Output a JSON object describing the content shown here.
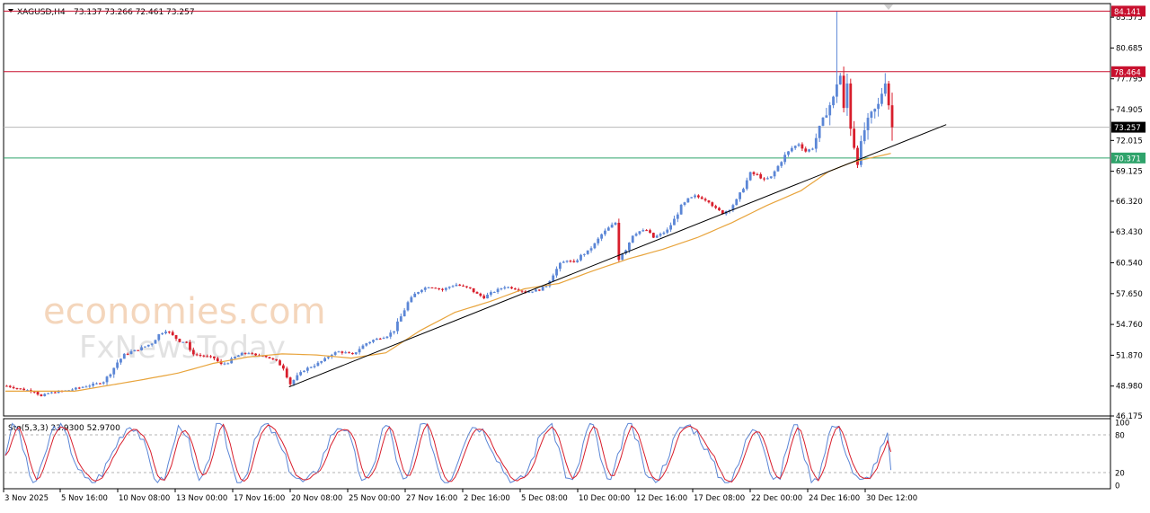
{
  "header": {
    "symbol": "XAGUSD,H4",
    "ohlc": "73.137 73.266 72.461 73.257"
  },
  "watermark": {
    "line1": "economies.com",
    "line2": "FxNewsToday"
  },
  "colors": {
    "bull": "#5b86d6",
    "bear": "#d81e2c",
    "ma": "#e8a43c",
    "trendline": "#000000",
    "resistance": "#c8102e",
    "support": "#2fa36b",
    "current": "#000000",
    "stoch_main": "#5b86d6",
    "stoch_signal": "#d81e2c"
  },
  "chart_data": [
    {
      "type": "candlestick",
      "title": "XAGUSD,H4",
      "ylim": [
        46.175,
        84.85
      ],
      "y_ticks": [
        "83.575",
        "80.685",
        "77.795",
        "74.905",
        "72.015",
        "69.125",
        "66.320",
        "63.430",
        "60.540",
        "57.650",
        "54.760",
        "51.870",
        "48.980",
        "46.175"
      ],
      "x_ticks": [
        "3 Nov 2025",
        "5 Nov 16:00",
        "10 Nov 08:00",
        "13 Nov 00:00",
        "17 Nov 16:00",
        "20 Nov 08:00",
        "25 Nov 00:00",
        "27 Nov 16:00",
        "2 Dec 16:00",
        "5 Dec 08:00",
        "10 Dec 00:00",
        "12 Dec 16:00",
        "17 Dec 08:00",
        "22 Dec 00:00",
        "24 Dec 16:00",
        "30 Dec 12:00"
      ],
      "levels": [
        {
          "label": "84.141",
          "value": 84.141,
          "kind": "resistance"
        },
        {
          "label": "78.464",
          "value": 78.464,
          "kind": "resistance"
        },
        {
          "label": "73.257",
          "value": 73.257,
          "kind": "current"
        },
        {
          "label": "70.371",
          "value": 70.371,
          "kind": "support"
        }
      ],
      "trendline": {
        "from": {
          "bar": 82,
          "price": 48.9
        },
        "to": {
          "bar": 272,
          "price": 73.5
        }
      },
      "close_path": [
        [
          0,
          49.0
        ],
        [
          4,
          48.7
        ],
        [
          8,
          48.5
        ],
        [
          10,
          48.0
        ],
        [
          12,
          48.3
        ],
        [
          14,
          48.4
        ],
        [
          18,
          48.6
        ],
        [
          22,
          48.9
        ],
        [
          26,
          49.2
        ],
        [
          28,
          49.4
        ],
        [
          30,
          50.2
        ],
        [
          32,
          51.2
        ],
        [
          34,
          51.9
        ],
        [
          36,
          52.2
        ],
        [
          38,
          52.4
        ],
        [
          40,
          52.7
        ],
        [
          42,
          53.0
        ],
        [
          44,
          53.8
        ],
        [
          46,
          54.2
        ],
        [
          47,
          54.0
        ],
        [
          48,
          53.7
        ],
        [
          50,
          53.2
        ],
        [
          52,
          53.1
        ],
        [
          53,
          52.2
        ],
        [
          55,
          51.9
        ],
        [
          57,
          51.8
        ],
        [
          60,
          51.6
        ],
        [
          62,
          51.0
        ],
        [
          64,
          51.2
        ],
        [
          66,
          51.7
        ],
        [
          68,
          52.0
        ],
        [
          70,
          52.1
        ],
        [
          72,
          51.8
        ],
        [
          74,
          51.9
        ],
        [
          76,
          51.6
        ],
        [
          78,
          51.3
        ],
        [
          80,
          50.7
        ],
        [
          82,
          49.2
        ],
        [
          84,
          49.9
        ],
        [
          86,
          50.5
        ],
        [
          88,
          50.8
        ],
        [
          90,
          51.1
        ],
        [
          92,
          51.5
        ],
        [
          94,
          52.0
        ],
        [
          96,
          52.2
        ],
        [
          98,
          52.1
        ],
        [
          100,
          51.9
        ],
        [
          102,
          52.5
        ],
        [
          104,
          53.0
        ],
        [
          106,
          53.3
        ],
        [
          108,
          53.5
        ],
        [
          110,
          53.7
        ],
        [
          112,
          54.2
        ],
        [
          114,
          55.5
        ],
        [
          116,
          56.8
        ],
        [
          118,
          57.6
        ],
        [
          120,
          58.1
        ],
        [
          122,
          58.3
        ],
        [
          124,
          58.2
        ],
        [
          126,
          58.0
        ],
        [
          128,
          58.3
        ],
        [
          130,
          58.5
        ],
        [
          132,
          58.3
        ],
        [
          134,
          58.1
        ],
        [
          136,
          57.6
        ],
        [
          138,
          57.3
        ],
        [
          140,
          57.7
        ],
        [
          142,
          58.0
        ],
        [
          144,
          58.3
        ],
        [
          146,
          58.2
        ],
        [
          148,
          58.0
        ],
        [
          150,
          57.8
        ],
        [
          152,
          57.9
        ],
        [
          154,
          58.0
        ],
        [
          156,
          58.4
        ],
        [
          158,
          59.5
        ],
        [
          160,
          60.4
        ],
        [
          162,
          60.8
        ],
        [
          164,
          60.5
        ],
        [
          166,
          61.2
        ],
        [
          168,
          61.6
        ],
        [
          170,
          62.3
        ],
        [
          172,
          63.2
        ],
        [
          174,
          63.8
        ],
        [
          176,
          64.3
        ],
        [
          177,
          61.2
        ],
        [
          179,
          61.8
        ],
        [
          181,
          63.2
        ],
        [
          183,
          63.5
        ],
        [
          185,
          63.6
        ],
        [
          187,
          62.9
        ],
        [
          189,
          63.2
        ],
        [
          191,
          63.6
        ],
        [
          193,
          64.6
        ],
        [
          195,
          65.8
        ],
        [
          197,
          66.5
        ],
        [
          199,
          66.8
        ],
        [
          201,
          66.6
        ],
        [
          203,
          66.3
        ],
        [
          205,
          65.6
        ],
        [
          207,
          65.2
        ],
        [
          209,
          65.6
        ],
        [
          211,
          66.4
        ],
        [
          213,
          67.6
        ],
        [
          215,
          68.9
        ],
        [
          217,
          68.8
        ],
        [
          219,
          68.3
        ],
        [
          221,
          68.6
        ],
        [
          223,
          69.6
        ],
        [
          225,
          70.6
        ],
        [
          227,
          71.3
        ],
        [
          229,
          71.7
        ],
        [
          231,
          71.0
        ],
        [
          233,
          71.3
        ],
        [
          235,
          73.2
        ],
        [
          237,
          74.8
        ],
        [
          239,
          75.9
        ],
        [
          240,
          77.5
        ],
        [
          241,
          78.1
        ],
        [
          242,
          74.6
        ],
        [
          243,
          77.3
        ],
        [
          244,
          73.6
        ],
        [
          245,
          71.6
        ],
        [
          246,
          70.2
        ],
        [
          247,
          71.4
        ],
        [
          248,
          73.0
        ],
        [
          250,
          74.4
        ],
        [
          252,
          75.3
        ],
        [
          254,
          77.8
        ],
        [
          255,
          75.5
        ],
        [
          256,
          73.257
        ]
      ],
      "ma_path": [
        [
          0,
          48.5
        ],
        [
          20,
          48.5
        ],
        [
          40,
          49.6
        ],
        [
          50,
          50.2
        ],
        [
          60,
          51.1
        ],
        [
          70,
          51.7
        ],
        [
          80,
          52.0
        ],
        [
          90,
          51.9
        ],
        [
          100,
          51.6
        ],
        [
          110,
          52.1
        ],
        [
          120,
          54.2
        ],
        [
          130,
          55.9
        ],
        [
          140,
          56.9
        ],
        [
          150,
          58.1
        ],
        [
          160,
          58.6
        ],
        [
          170,
          59.8
        ],
        [
          180,
          60.9
        ],
        [
          190,
          61.8
        ],
        [
          200,
          62.9
        ],
        [
          210,
          64.3
        ],
        [
          220,
          65.9
        ],
        [
          230,
          67.3
        ],
        [
          238,
          69.1
        ],
        [
          245,
          70.0
        ],
        [
          256,
          70.8
        ]
      ],
      "big_wick": {
        "bar": 240,
        "high": 84.1
      }
    },
    {
      "type": "line",
      "title": "Sto(5,3,3) 23.9300 52.9700",
      "ylim": [
        0,
        100
      ],
      "y_ticks": [
        "100",
        "80",
        "20",
        "0"
      ],
      "levels": [
        80,
        20
      ],
      "series": [
        {
          "name": "Sto(5,3,3)",
          "value_label": "23.9300"
        },
        {
          "value_label": "52.9700"
        }
      ]
    }
  ]
}
